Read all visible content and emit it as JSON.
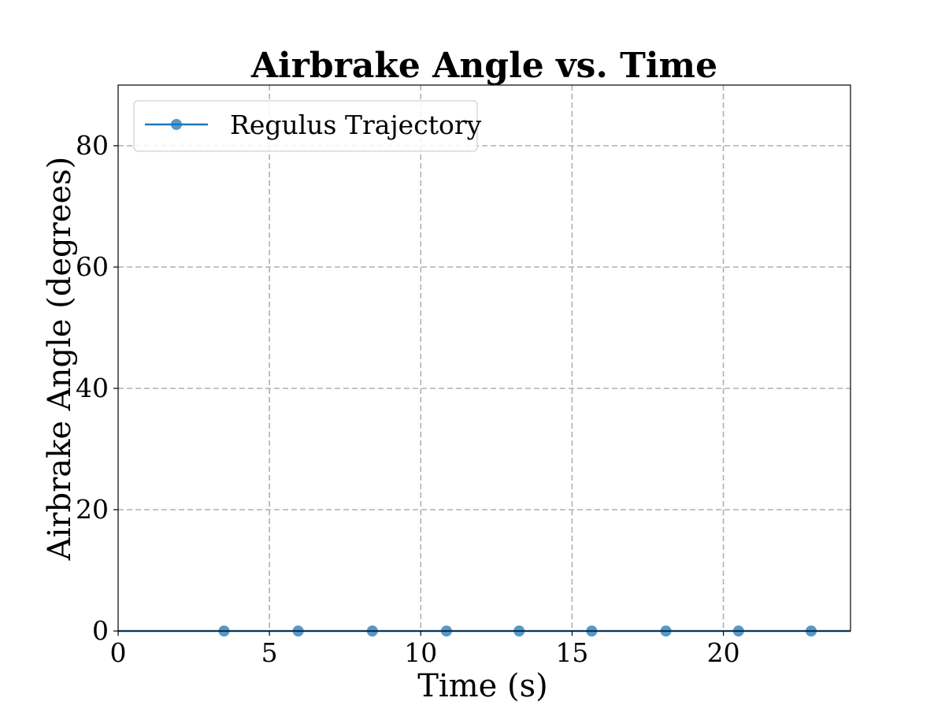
{
  "chart_data": {
    "type": "line",
    "title": "Airbrake Angle vs. Time",
    "xlabel": "Time (s)",
    "ylabel": "Airbrake Angle (degrees)",
    "xlim": [
      0,
      24.2
    ],
    "ylim": [
      0,
      90
    ],
    "xticks": [
      0,
      5,
      10,
      15,
      20
    ],
    "yticks": [
      0,
      20,
      40,
      60,
      80
    ],
    "grid": true,
    "legend_position": "upper-left",
    "series": [
      {
        "name": "Regulus Trajectory",
        "color": "#1f77b4",
        "x": [
          0,
          24.2
        ],
        "y": [
          0,
          0
        ],
        "marker_x": [
          3.5,
          5.95,
          8.4,
          10.85,
          13.25,
          15.65,
          18.1,
          20.5,
          22.9
        ],
        "marker_y": [
          0,
          0,
          0,
          0,
          0,
          0,
          0,
          0,
          0
        ]
      }
    ]
  }
}
